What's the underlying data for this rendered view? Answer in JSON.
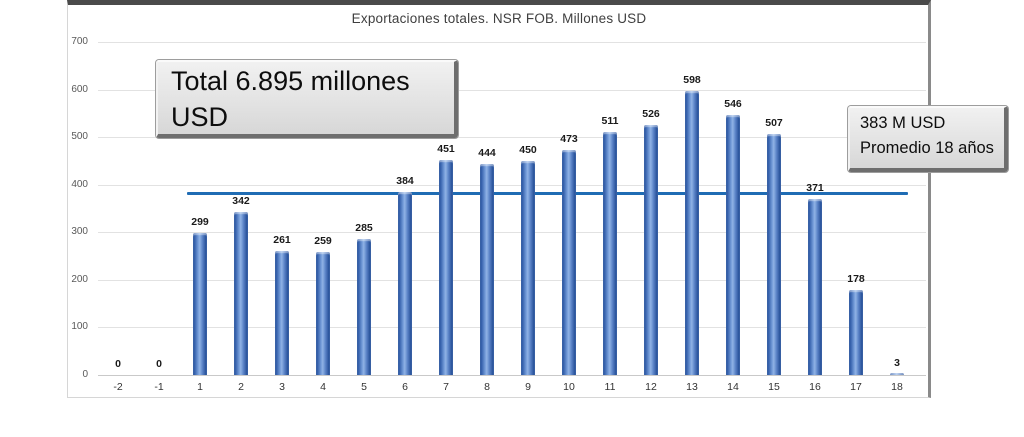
{
  "title": "Exportaciones totales. NSR FOB. Millones USD",
  "annotation_total": {
    "line1": "Total 6.895 millones",
    "line2": "USD"
  },
  "annotation_avg": {
    "line1": "383 M USD",
    "line2": "Promedio 18 años"
  },
  "chart_data": {
    "type": "bar",
    "title": "Exportaciones totales. NSR FOB. Millones USD",
    "categories": [
      "-2",
      "-1",
      "1",
      "2",
      "3",
      "4",
      "5",
      "6",
      "7",
      "8",
      "9",
      "10",
      "11",
      "12",
      "13",
      "14",
      "15",
      "16",
      "17",
      "18"
    ],
    "values": [
      0,
      0,
      299,
      342,
      261,
      259,
      285,
      384,
      451,
      444,
      450,
      473,
      511,
      526,
      598,
      546,
      507,
      371,
      178,
      3
    ],
    "xlabel": "",
    "ylabel": "",
    "ylim": [
      0,
      700
    ],
    "yticks": [
      0,
      100,
      200,
      300,
      400,
      500,
      600,
      700
    ],
    "grid": "horizontal-only",
    "legend_position": "none",
    "data_labels": true,
    "bar_color": "#4472c4",
    "average_line": {
      "value": 383,
      "color": "#1f6cb4",
      "label": "383 M USD Promedio 18 años"
    },
    "total_annotation": "Total 6.895 millones USD"
  }
}
